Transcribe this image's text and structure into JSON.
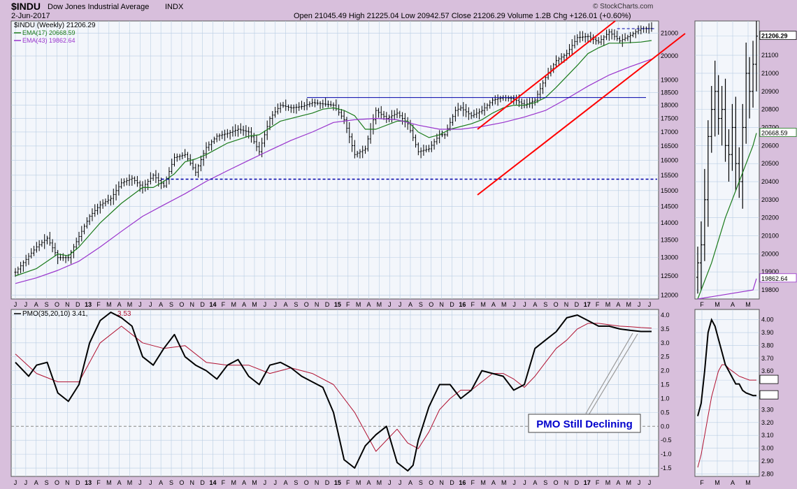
{
  "header": {
    "symbol": "$INDU",
    "name": "Dow Jones Industrial Average",
    "exchange": "INDX",
    "date": "2-Jun-2017",
    "ohlc": "Open 21045.49   High 21225.04   Low 20942.57   Close 21206.29   Volume 1.2B   Chg +126.01 (+0.60%)",
    "credit": "© StockCharts.com"
  },
  "colors": {
    "background": "#d8bfdc",
    "panel": "#f3f6fb",
    "grid": "#b9cde3",
    "price": "#000000",
    "ema17": "#1a7a1a",
    "ema43": "#9933cc",
    "pmo": "#000000",
    "pmo_signal": "#b01030",
    "channel": "#ff0000",
    "support": "#0000aa",
    "annotation": "#0000cc"
  },
  "chart_data": [
    {
      "type": "line",
      "title": "$INDU (Weekly) 21206.29",
      "legend": [
        {
          "name": "$INDU (Weekly)",
          "value": "21206.29",
          "color": "#000000"
        },
        {
          "name": "EMA(17)",
          "value": "20668.59",
          "color": "#1a7a1a"
        },
        {
          "name": "EMA(43)",
          "value": "19862.64",
          "color": "#9933cc"
        }
      ],
      "y_scale": "log",
      "ylim": [
        11900,
        21550
      ],
      "y_ticks": [
        "12000",
        "12500",
        "13000",
        "13500",
        "14000",
        "14500",
        "15000",
        "15500",
        "16000",
        "16500",
        "17000",
        "17500",
        "18000",
        "18500",
        "19000",
        "20000",
        "21000"
      ],
      "x_ticks": [
        "J",
        "J",
        "A",
        "S",
        "O",
        "N",
        "D",
        "13",
        "F",
        "M",
        "A",
        "M",
        "J",
        "J",
        "A",
        "S",
        "O",
        "N",
        "D",
        "14",
        "F",
        "M",
        "A",
        "M",
        "J",
        "J",
        "A",
        "S",
        "O",
        "N",
        "D",
        "15",
        "F",
        "M",
        "A",
        "M",
        "J",
        "J",
        "A",
        "S",
        "O",
        "N",
        "D",
        "16",
        "F",
        "M",
        "A",
        "M",
        "J",
        "J",
        "A",
        "S",
        "O",
        "N",
        "D",
        "17",
        "F",
        "M",
        "A",
        "M",
        "J",
        "J"
      ],
      "series": [
        {
          "name": "$INDU (Weekly)",
          "x": [
            0,
            4,
            8,
            12,
            16,
            20,
            24,
            28,
            32,
            36,
            40,
            44,
            48,
            52,
            56,
            60,
            64,
            68,
            72,
            76,
            80,
            84,
            88,
            92,
            96,
            100,
            104,
            108,
            112,
            116,
            120,
            124,
            128,
            132,
            136,
            140,
            144,
            148,
            152,
            156,
            160,
            162,
            166,
            168,
            172,
            176,
            180,
            184,
            188,
            192,
            196,
            200,
            204,
            208,
            212,
            216,
            220,
            224,
            228,
            232,
            236,
            240,
            244,
            248,
            252
          ],
          "values": [
            12600,
            12950,
            13300,
            13550,
            13000,
            13000,
            13600,
            14200,
            14550,
            14750,
            15250,
            15400,
            15100,
            15500,
            15150,
            16100,
            16200,
            15600,
            16450,
            16850,
            16950,
            17100,
            17000,
            16300,
            17500,
            18000,
            17900,
            17950,
            18100,
            18050,
            18000,
            17450,
            16200,
            16400,
            17800,
            17500,
            17700,
            17300,
            16300,
            16400,
            16900,
            16900,
            17800,
            17900,
            17600,
            17800,
            18200,
            18300,
            18250,
            18000,
            18200,
            19100,
            19800,
            20100,
            20800,
            20850,
            20600,
            21050,
            20650,
            20900,
            21206,
            21206,
            21206,
            21206,
            21206
          ]
        },
        {
          "name": "EMA(17)",
          "x": [
            0,
            8,
            16,
            20,
            24,
            32,
            40,
            48,
            52,
            56,
            60,
            64,
            68,
            72,
            80,
            88,
            92,
            100,
            108,
            112,
            116,
            120,
            124,
            128,
            132,
            136,
            144,
            148,
            152,
            156,
            160,
            164,
            172,
            176,
            180,
            184,
            188,
            192,
            196,
            200,
            204,
            212,
            216,
            220,
            224,
            228,
            236,
            240
          ],
          "values": [
            12500,
            12700,
            13100,
            13050,
            13300,
            14000,
            14600,
            15100,
            15100,
            15300,
            15550,
            15950,
            16050,
            16200,
            16600,
            16850,
            16900,
            17400,
            17600,
            17700,
            17850,
            17900,
            17800,
            17600,
            17100,
            17100,
            17400,
            17400,
            17000,
            16800,
            16900,
            17100,
            17300,
            17450,
            17700,
            17900,
            18000,
            18000,
            18100,
            18300,
            18700,
            19600,
            20100,
            20350,
            20550,
            20550,
            20600,
            20669
          ]
        },
        {
          "name": "EMA(43)",
          "x": [
            0,
            8,
            16,
            24,
            32,
            40,
            48,
            56,
            64,
            72,
            80,
            88,
            96,
            104,
            112,
            120,
            128,
            136,
            144,
            152,
            160,
            168,
            176,
            184,
            192,
            200,
            208,
            216,
            224,
            232,
            240
          ],
          "values": [
            12300,
            12450,
            12650,
            12900,
            13300,
            13750,
            14200,
            14550,
            14900,
            15300,
            15650,
            16000,
            16350,
            16700,
            17000,
            17350,
            17450,
            17500,
            17450,
            17250,
            17100,
            17100,
            17200,
            17350,
            17550,
            17800,
            18250,
            18750,
            19200,
            19550,
            19863
          ]
        }
      ],
      "annotations": {
        "resistance_level": 18300,
        "support_level": 15370,
        "recent_high_level": 21200
      }
    },
    {
      "type": "line",
      "title": "PMO(35,20,10) 3.41, 3.53",
      "legend": [
        {
          "name": "PMO(35,20,10)",
          "value": "3.41",
          "color": "#000000"
        },
        {
          "name": "",
          "value": "3.53",
          "color": "#b01030"
        }
      ],
      "ylim": [
        -1.8,
        4.2
      ],
      "y_ticks": [
        "-1.5",
        "-1.0",
        "-0.5",
        "0.0",
        "0.5",
        "1.0",
        "1.5",
        "2.0",
        "2.5",
        "3.0",
        "3.5",
        "4.0"
      ],
      "annotation": "PMO Still Declining",
      "series": [
        {
          "name": "PMO",
          "x": [
            0,
            5,
            8,
            12,
            16,
            20,
            24,
            28,
            32,
            36,
            40,
            44,
            48,
            52,
            56,
            60,
            64,
            68,
            72,
            76,
            80,
            84,
            88,
            92,
            96,
            100,
            104,
            108,
            112,
            116,
            120,
            124,
            128,
            132,
            136,
            140,
            144,
            148,
            150,
            152,
            156,
            160,
            164,
            168,
            172,
            176,
            180,
            184,
            188,
            192,
            196,
            200,
            204,
            208,
            212,
            216,
            220,
            224,
            228,
            232,
            236,
            240
          ],
          "values": [
            2.3,
            1.8,
            2.2,
            2.3,
            1.2,
            0.9,
            1.5,
            3.0,
            3.8,
            4.1,
            3.9,
            3.6,
            2.5,
            2.2,
            2.8,
            3.3,
            2.5,
            2.2,
            2.0,
            1.7,
            2.2,
            2.4,
            1.8,
            1.5,
            2.2,
            2.3,
            2.1,
            1.8,
            1.6,
            1.4,
            0.5,
            -1.2,
            -1.5,
            -0.7,
            -0.3,
            0.0,
            -1.3,
            -1.6,
            -1.4,
            -0.5,
            0.7,
            1.5,
            1.5,
            1.0,
            1.3,
            2.0,
            1.9,
            1.8,
            1.3,
            1.5,
            2.8,
            3.1,
            3.4,
            3.9,
            4.0,
            3.8,
            3.6,
            3.6,
            3.5,
            3.45,
            3.41,
            3.41
          ]
        },
        {
          "name": "Signal",
          "x": [
            0,
            8,
            16,
            24,
            32,
            40,
            48,
            56,
            64,
            72,
            80,
            88,
            96,
            104,
            112,
            120,
            128,
            136,
            144,
            148,
            152,
            156,
            160,
            164,
            168,
            172,
            176,
            180,
            184,
            188,
            192,
            196,
            200,
            204,
            208,
            212,
            216,
            220,
            224,
            228,
            232,
            236,
            240
          ],
          "values": [
            2.6,
            1.9,
            1.6,
            1.6,
            3.0,
            3.6,
            3.0,
            2.8,
            2.9,
            2.3,
            2.2,
            2.2,
            1.9,
            2.1,
            1.9,
            1.5,
            0.5,
            -0.9,
            -0.1,
            -0.6,
            -0.8,
            -0.2,
            0.6,
            1.0,
            1.3,
            1.3,
            1.6,
            1.9,
            1.9,
            1.7,
            1.4,
            1.8,
            2.3,
            2.8,
            3.1,
            3.5,
            3.7,
            3.7,
            3.65,
            3.6,
            3.58,
            3.55,
            3.53
          ]
        }
      ]
    },
    {
      "type": "line",
      "title": "",
      "ylim": [
        19750,
        21290
      ],
      "y_ticks": [
        "19800",
        "19900",
        "20000",
        "20100",
        "20200",
        "20300",
        "20400",
        "20500",
        "20600",
        "20700",
        "20800",
        "20900",
        "21000",
        "21100",
        "21206.29"
      ],
      "x_ticks": [
        "F",
        "M",
        "A",
        "M"
      ],
      "series": [
        {
          "name": "$INDU (Weekly)",
          "x": [
            0,
            1,
            2,
            3,
            4,
            5,
            6,
            7,
            8,
            9,
            10,
            11,
            12,
            13,
            14,
            15,
            16,
            17
          ],
          "values": [
            19950,
            20050,
            20300,
            20650,
            20800,
            20900,
            20750,
            20800,
            20600,
            20550,
            20700,
            20500,
            20400,
            20700,
            21000,
            20900,
            21050,
            21206
          ]
        },
        {
          "name": "EMA(17)",
          "x": [
            0,
            4,
            8,
            12,
            14,
            16,
            17
          ],
          "values": [
            19700,
            19950,
            20200,
            20400,
            20500,
            20600,
            20669
          ]
        },
        {
          "name": "EMA(43)",
          "x": [
            0,
            16,
            17
          ],
          "values": [
            19600,
            19800,
            19863
          ]
        }
      ]
    },
    {
      "type": "line",
      "title": "",
      "ylim": [
        2.78,
        4.08
      ],
      "y_ticks": [
        "2.80",
        "2.90",
        "3.00",
        "3.10",
        "3.20",
        "3.30",
        "3.40",
        "3.53",
        "3.60",
        "3.70",
        "3.80",
        "3.90",
        "4.00"
      ],
      "series": [
        {
          "name": "PMO",
          "x": [
            0,
            1,
            2,
            3,
            4,
            5,
            6,
            7,
            8,
            9,
            10,
            11,
            12,
            13,
            14,
            15,
            16,
            17
          ],
          "values": [
            3.25,
            3.35,
            3.6,
            3.9,
            4.0,
            3.95,
            3.85,
            3.75,
            3.65,
            3.6,
            3.55,
            3.5,
            3.5,
            3.45,
            3.43,
            3.42,
            3.41,
            3.41
          ]
        },
        {
          "name": "Signal",
          "x": [
            0,
            1,
            2,
            3,
            4,
            5,
            6,
            7,
            8,
            9,
            10,
            11,
            12,
            13,
            14,
            15,
            16,
            17
          ],
          "values": [
            2.85,
            2.95,
            3.1,
            3.25,
            3.4,
            3.5,
            3.6,
            3.65,
            3.65,
            3.62,
            3.6,
            3.58,
            3.56,
            3.55,
            3.54,
            3.53,
            3.53,
            3.53
          ]
        }
      ]
    }
  ]
}
